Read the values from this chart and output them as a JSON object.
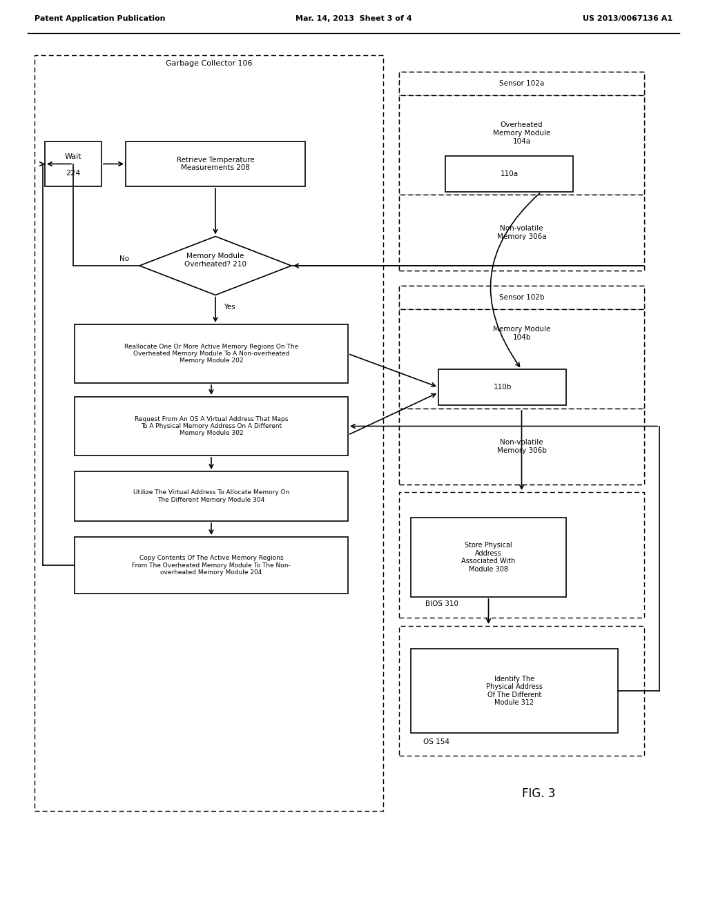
{
  "bg_color": "#ffffff",
  "header_left": "Patent Application Publication",
  "header_mid": "Mar. 14, 2013  Sheet 3 of 4",
  "header_right": "US 2013/0067136 A1",
  "footer": "FIG. 3",
  "gc_label": "Garbage Collector 106",
  "wait_line1": "Wait",
  "wait_line2": "224",
  "retrieve_label": "Retrieve Temperature\nMeasurements 208",
  "diamond_label": "Memory Module\nOverheated? 210",
  "no_label": "No",
  "yes_label": "Yes",
  "reallocate_label": "Reallocate One Or More Active Memory Regions On The\nOverheated Memory Module To A Non-overheated\nMemory Module 202",
  "request_label": "Request From An OS A Virtual Address That Maps\nTo A Physical Memory Address On A Different\nMemory Module 302",
  "utilize_label": "Utilize The Virtual Address To Allocate Memory On\nThe Different Memory Module 304",
  "copy_label": "Copy Contents Of The Active Memory Regions\nFrom The Overheated Memory Module To The Non-\noverheated Memory Module 204",
  "sensor_a_label": "Sensor 102a",
  "overheat_mem_label": "Overheated\nMemory Module\n104a",
  "box_110a_label": "110a",
  "nonvol_a_label": "Non-volatile\nMemory 306a",
  "sensor_b_label": "Sensor 102b",
  "mem_b_label": "Memory Module\n104b",
  "box_110b_label": "110b",
  "nonvol_b_label": "Non-volatile\nMemory 306b",
  "store_label": "Store Physical\nAddress\nAssociated With\nModule 308",
  "bios_label": "BIOS 310",
  "identify_label": "Identify The\nPhysical Address\nOf The Different\nModule 312",
  "os_label": "OS 154"
}
